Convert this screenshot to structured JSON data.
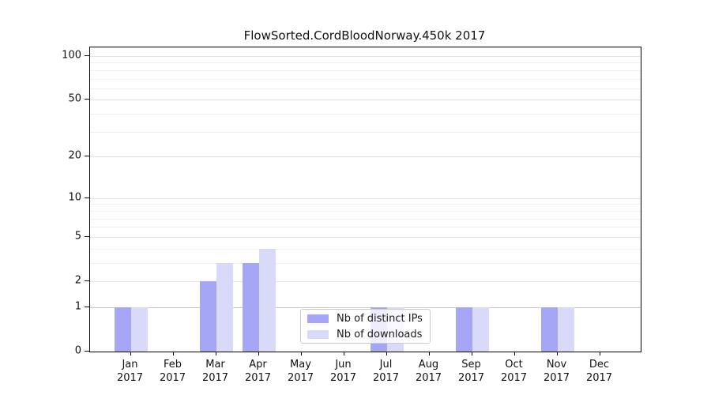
{
  "chart_data": {
    "type": "bar",
    "title": "FlowSorted.CordBloodNorway.450k 2017",
    "scale": "log1p",
    "grid": "horizontal",
    "legend_position": "lower-center",
    "categories": [
      "Jan",
      "Feb",
      "Mar",
      "Apr",
      "May",
      "Jun",
      "Jul",
      "Aug",
      "Sep",
      "Oct",
      "Nov",
      "Dec"
    ],
    "year_label": "2017",
    "series": [
      {
        "name": "Nb of distinct IPs",
        "color": "#a5a6f5",
        "values": [
          1,
          0,
          2,
          3,
          0,
          0,
          1,
          0,
          1,
          0,
          1,
          0
        ]
      },
      {
        "name": "Nb of downloads",
        "color": "#d9daf9",
        "values": [
          1,
          0,
          3,
          4,
          0,
          0,
          1,
          0,
          1,
          0,
          1,
          0
        ]
      }
    ],
    "yticks": [
      0,
      1,
      2,
      5,
      10,
      20,
      50,
      100
    ],
    "minor_gridlines": [
      3,
      4,
      6,
      7,
      8,
      9,
      30,
      40,
      60,
      70,
      80,
      90
    ],
    "ylim": [
      0,
      115
    ],
    "colors": {
      "grid_major": "#e4e4e4",
      "grid_minor": "#f0f0f0",
      "grid_unit": "#c8c8c8",
      "axis": "#000000",
      "text": "#111111"
    }
  }
}
